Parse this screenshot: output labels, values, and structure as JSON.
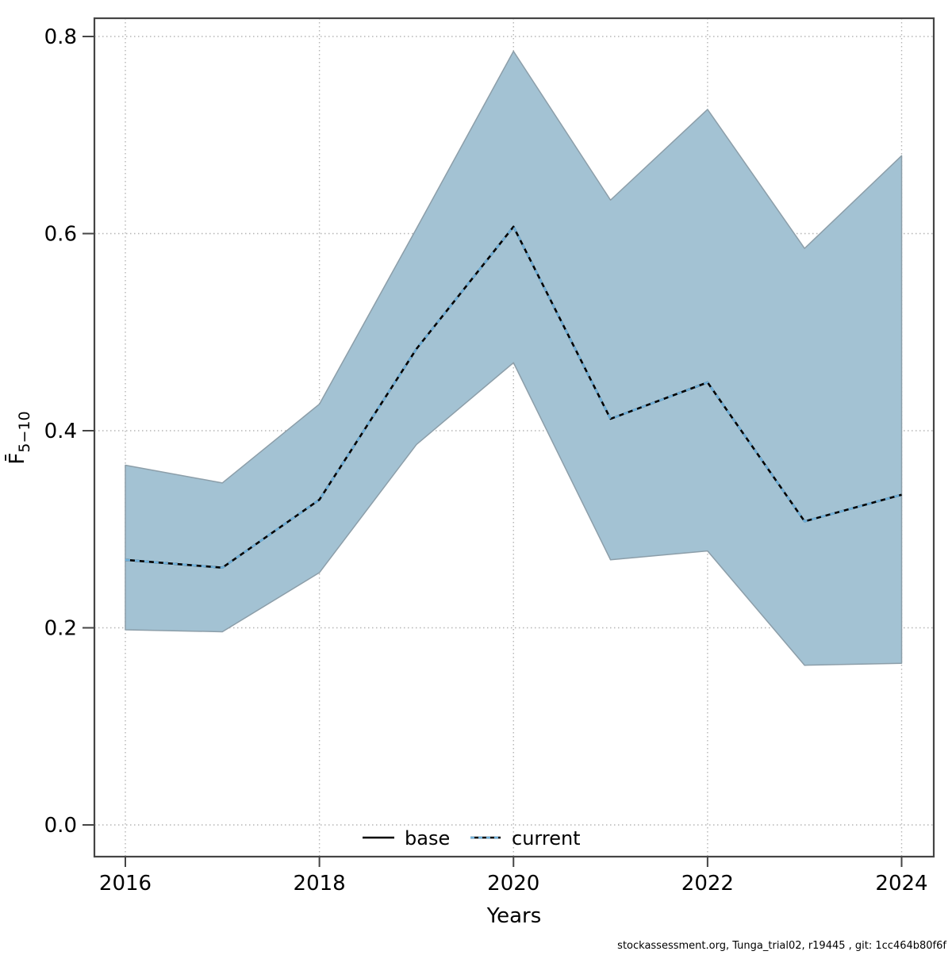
{
  "chart_data": {
    "type": "area",
    "title": "",
    "xlabel": "Years",
    "ylabel_main": "F̄",
    "ylabel_sub": "5−10",
    "x": [
      2016,
      2017,
      2018,
      2019,
      2020,
      2021,
      2022,
      2023,
      2024
    ],
    "series": [
      {
        "name": "base",
        "line_style": "solid",
        "color": "#000000",
        "values": [
          0.269,
          0.261,
          0.33,
          0.483,
          0.607,
          0.412,
          0.449,
          0.308,
          0.335
        ]
      },
      {
        "name": "current",
        "line_style": "dashed",
        "color": "#6fb0da",
        "values": [
          0.269,
          0.261,
          0.33,
          0.483,
          0.607,
          0.412,
          0.449,
          0.308,
          0.335
        ]
      }
    ],
    "band": {
      "name": "confidence-band",
      "color": "#a3c2d3",
      "low": [
        0.198,
        0.196,
        0.256,
        0.386,
        0.469,
        0.269,
        0.278,
        0.162,
        0.164
      ],
      "high": [
        0.365,
        0.347,
        0.427,
        0.605,
        0.785,
        0.634,
        0.726,
        0.585,
        0.679
      ]
    },
    "xticks": [
      2016,
      2018,
      2020,
      2022,
      2024
    ],
    "yticks": [
      "0.0",
      "0.2",
      "0.4",
      "0.6",
      "0.8"
    ],
    "xlim": [
      2015.68,
      2024.33
    ],
    "ylim": [
      0,
      0.82
    ],
    "grid": "dotted",
    "legend": [
      {
        "label": "base"
      },
      {
        "label": "current"
      }
    ],
    "legend_position": "bottom-center",
    "footnote": "stockassessment.org, Tunga_trial02, r19445 , git: 1cc464b80f6f",
    "colors": {
      "band_fill": "#a3c2d3",
      "band_edge": "#8c9ea9",
      "grid": "#b5b5b5",
      "axis": "#454545",
      "text": "#000000",
      "current_dash_blue": "#6fb0da",
      "base_line": "#000000"
    }
  }
}
